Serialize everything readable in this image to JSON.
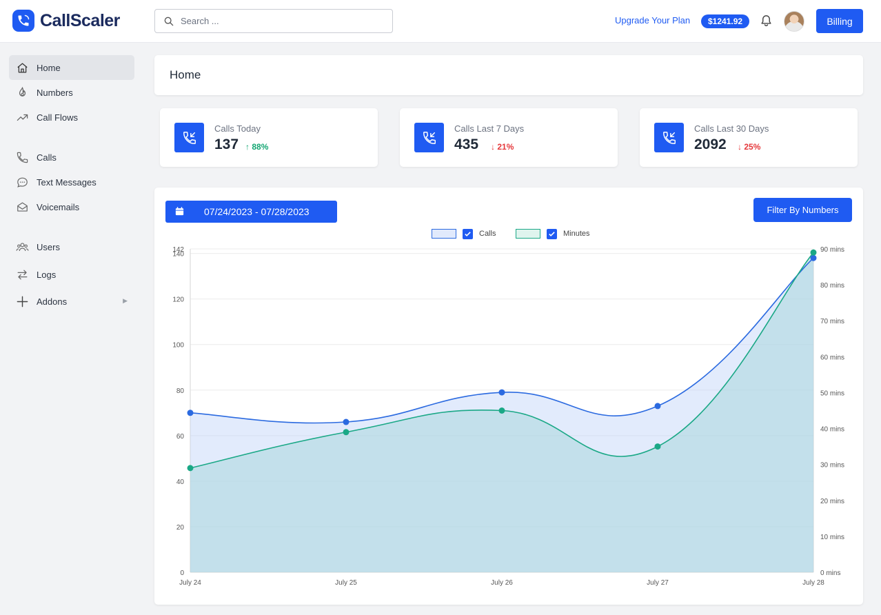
{
  "header": {
    "logo_text": "CallScaler",
    "search_placeholder": "Search ...",
    "upgrade_label": "Upgrade Your Plan",
    "balance": "$1241.92",
    "billing_label": "Billing"
  },
  "sidebar": {
    "items": [
      {
        "label": "Home",
        "icon": "home-icon"
      },
      {
        "label": "Numbers",
        "icon": "numbers-icon"
      },
      {
        "label": "Call Flows",
        "icon": "trend-icon"
      },
      {
        "label": "Calls",
        "icon": "phone-icon"
      },
      {
        "label": "Text Messages",
        "icon": "chat-icon"
      },
      {
        "label": "Voicemails",
        "icon": "mail-icon"
      },
      {
        "label": "Users",
        "icon": "users-icon"
      },
      {
        "label": "Logs",
        "icon": "swap-icon"
      },
      {
        "label": "Addons",
        "icon": "plus-icon"
      }
    ]
  },
  "page": {
    "title": "Home"
  },
  "stats": [
    {
      "label": "Calls Today",
      "value": "137",
      "change": "88%",
      "direction": "up"
    },
    {
      "label": "Calls Last 7 Days",
      "value": "435",
      "change": "21%",
      "direction": "down"
    },
    {
      "label": "Calls Last 30 Days",
      "value": "2092",
      "change": "25%",
      "direction": "down"
    }
  ],
  "chart_panel": {
    "date_range": "07/24/2023 - 07/28/2023",
    "filter_label": "Filter By Numbers"
  },
  "colors": {
    "accent": "#1f5bf2",
    "calls": "#2b6ae0",
    "minutes": "#1aa886"
  },
  "chart_data": {
    "type": "area",
    "categories": [
      "July 24",
      "July 25",
      "July 26",
      "July 27",
      "July 28"
    ],
    "series": [
      {
        "name": "Calls",
        "axis": "left",
        "values": [
          70,
          66,
          79,
          73,
          138
        ]
      },
      {
        "name": "Minutes",
        "axis": "right",
        "values": [
          29,
          39,
          45,
          35,
          89
        ]
      }
    ],
    "y_left": {
      "min": 0,
      "max": 142,
      "ticks": [
        0,
        20,
        40,
        60,
        80,
        100,
        120,
        140,
        142
      ]
    },
    "y_right": {
      "min": 0,
      "max": 90,
      "unit": "mins",
      "ticks": [
        0,
        10,
        20,
        30,
        40,
        50,
        60,
        70,
        80,
        90
      ]
    },
    "grid": true,
    "legend": "top-center"
  }
}
